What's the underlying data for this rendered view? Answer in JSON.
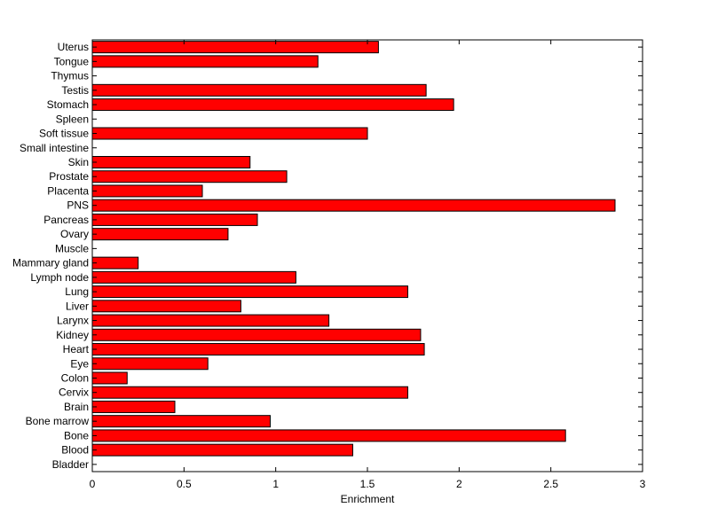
{
  "chart_data": {
    "type": "bar",
    "orientation": "horizontal",
    "title": "",
    "xlabel": "Enrichment",
    "ylabel": "",
    "xlim": [
      0,
      3
    ],
    "xticks": [
      0,
      0.5,
      1,
      1.5,
      2,
      2.5,
      3
    ],
    "xtick_labels": [
      "0",
      "0.5",
      "1",
      "1.5",
      "2",
      "2.5",
      "3"
    ],
    "grid": false,
    "legend": "none",
    "bar_color": "#ff0000",
    "categories": [
      "Bladder",
      "Blood",
      "Bone",
      "Bone marrow",
      "Brain",
      "Cervix",
      "Colon",
      "Eye",
      "Heart",
      "Kidney",
      "Larynx",
      "Liver",
      "Lung",
      "Lymph node",
      "Mammary gland",
      "Muscle",
      "Ovary",
      "Pancreas",
      "PNS",
      "Placenta",
      "Prostate",
      "Skin",
      "Small intestine",
      "Soft tissue",
      "Spleen",
      "Stomach",
      "Testis",
      "Thymus",
      "Tongue",
      "Uterus"
    ],
    "values": [
      0,
      1.42,
      2.58,
      0.97,
      0.45,
      1.72,
      0.19,
      0.63,
      1.81,
      1.79,
      1.29,
      0.81,
      1.72,
      1.11,
      0.25,
      0,
      0.74,
      0.9,
      2.85,
      0.6,
      1.06,
      0.86,
      0,
      1.5,
      0,
      1.97,
      1.82,
      0,
      1.23,
      1.56
    ]
  }
}
